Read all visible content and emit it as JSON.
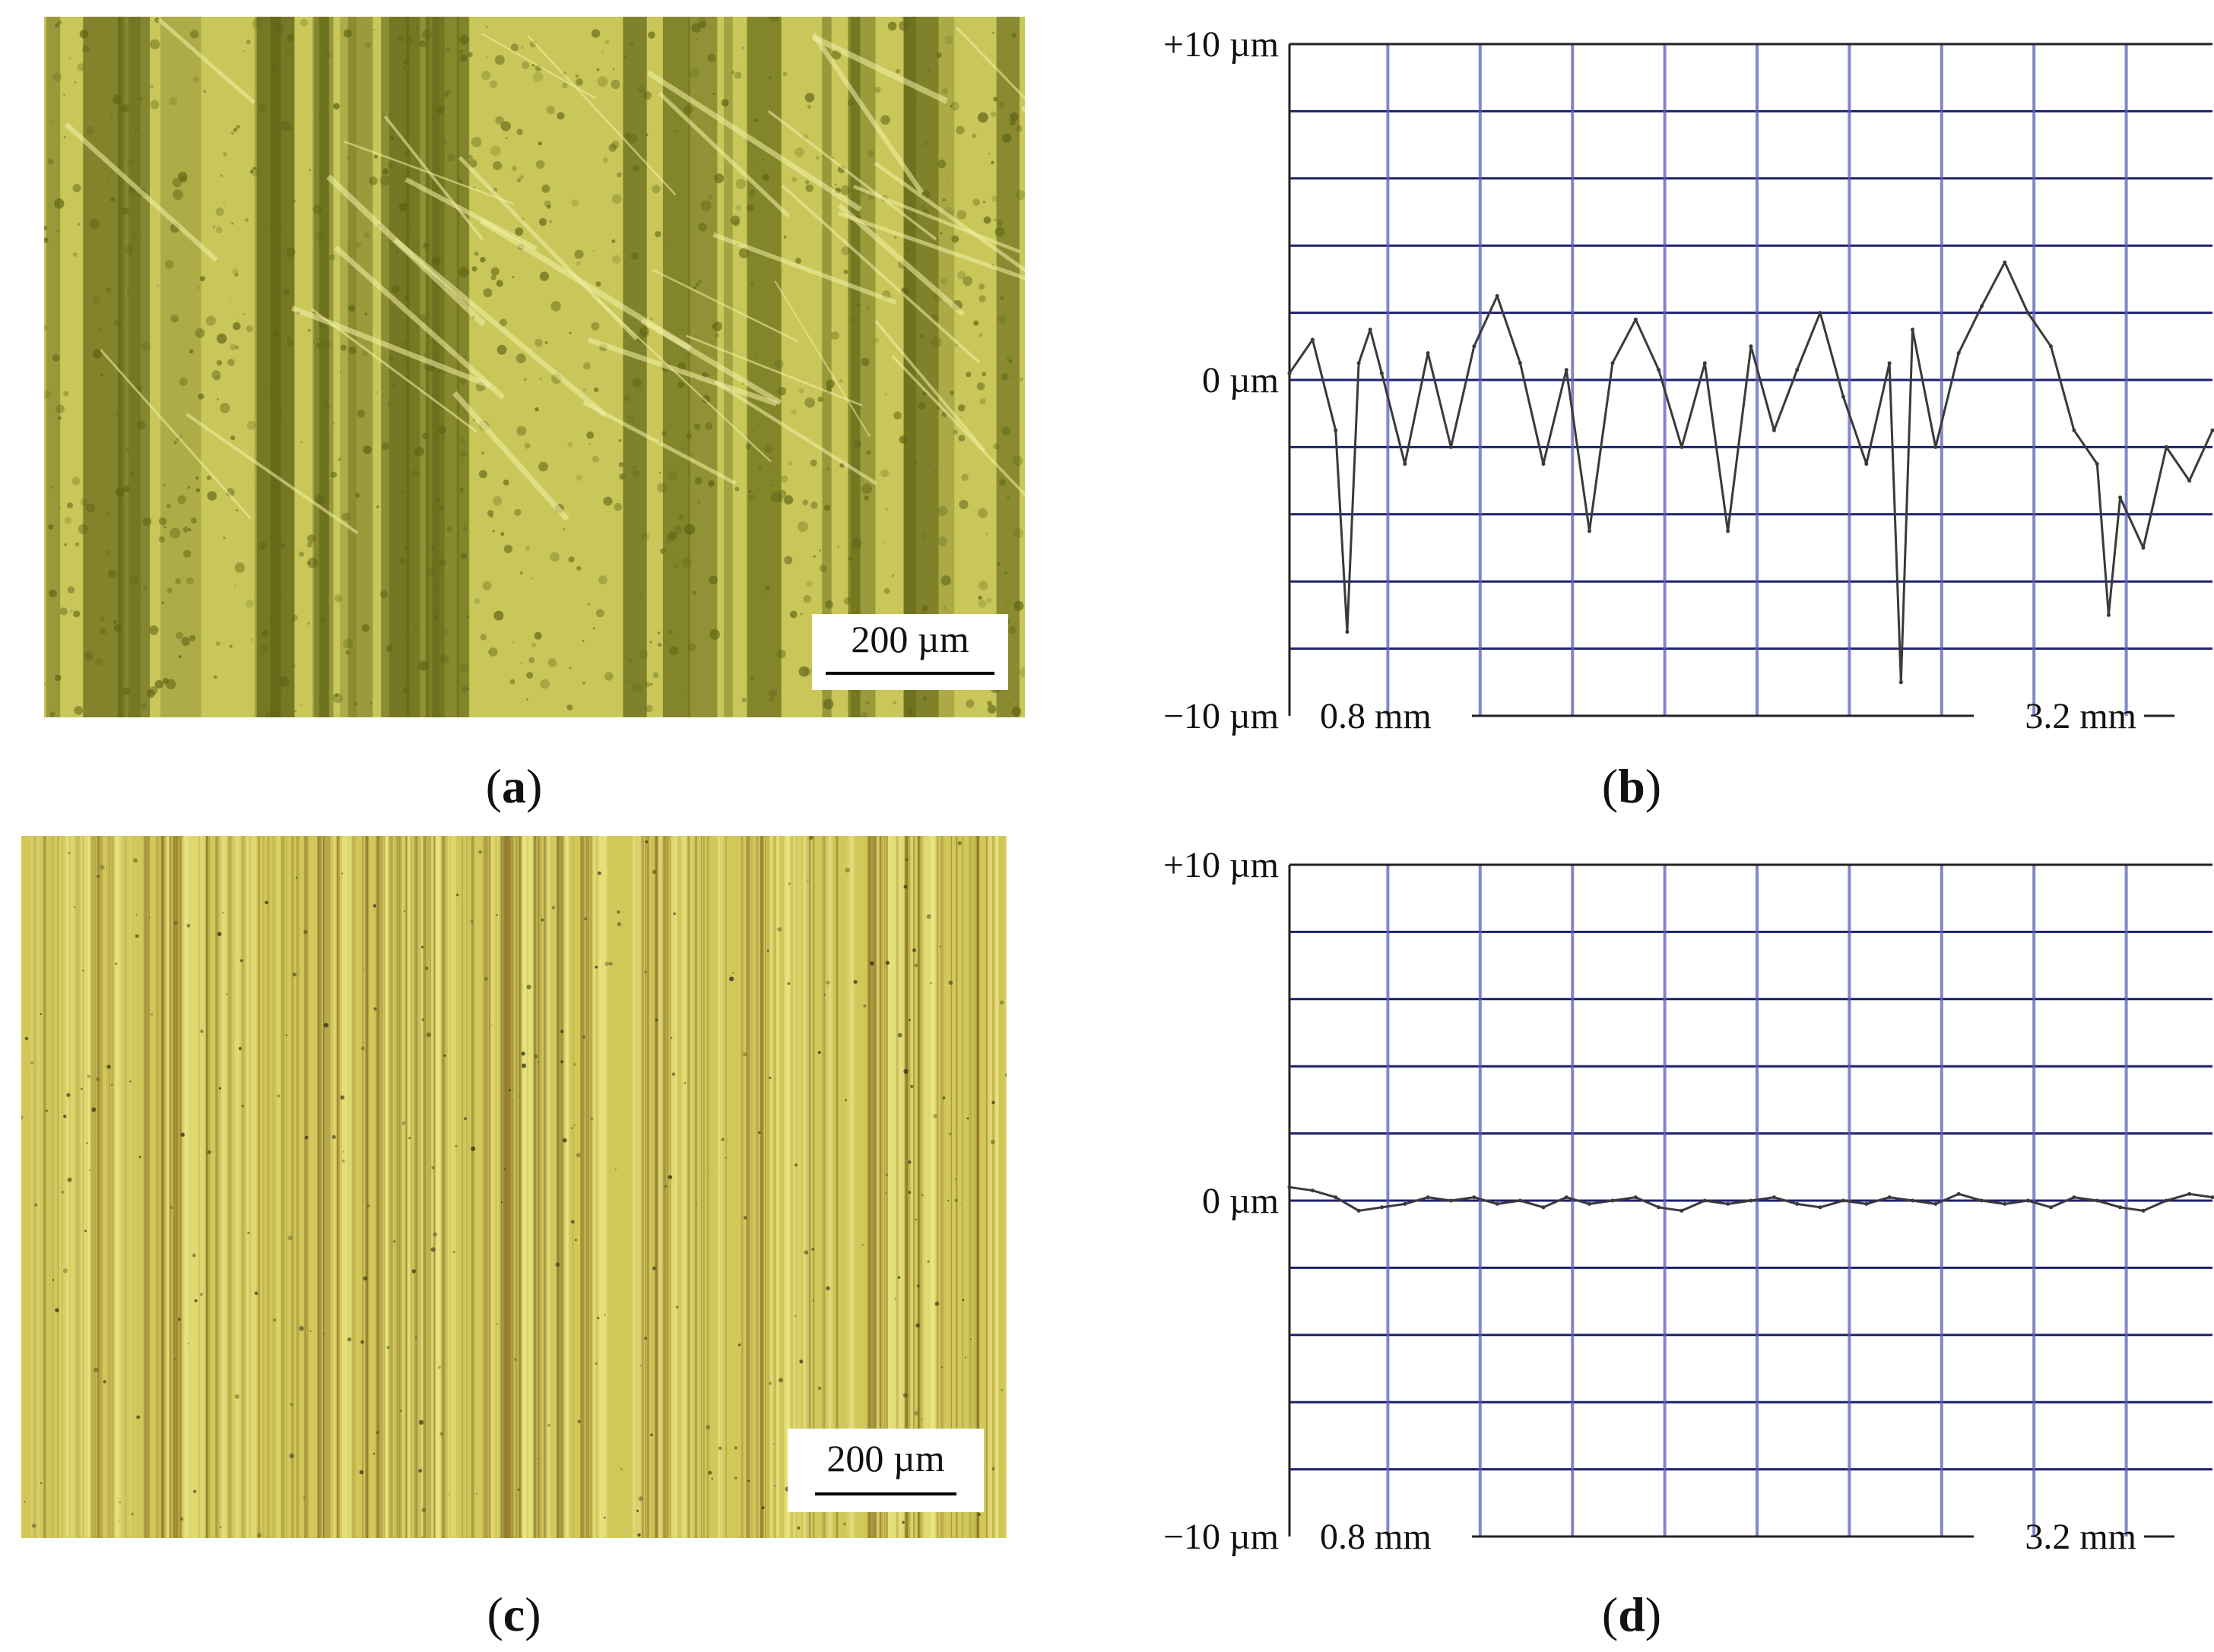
{
  "panels": [
    {
      "id": "a",
      "caption_letter": "a",
      "scale_label": "200 µm"
    },
    {
      "id": "b",
      "caption_letter": "b"
    },
    {
      "id": "c",
      "caption_letter": "c",
      "scale_label": "200 µm"
    },
    {
      "id": "d",
      "caption_letter": "d"
    }
  ],
  "colors": {
    "grid_vertical": "#5a5fb8",
    "grid_horizontal": "#1f1f6e",
    "profile": "#3a3a3a",
    "micro_a_base": "#c9c75a",
    "micro_a_dark": "#5e6214",
    "micro_c_base": "#d2c85a",
    "micro_c_dark": "#7a5e1e"
  },
  "chart_data": [
    {
      "panel": "b",
      "type": "line",
      "y_tick_labels": {
        "top": "+10 µm",
        "middle": "0 µm",
        "bottom": "−10 µm"
      },
      "x_tick_labels": {
        "left": "0.8 mm",
        "right": "3.2 mm"
      },
      "xlim": [
        0,
        4.0
      ],
      "ylim": [
        -10,
        10
      ],
      "grid": true,
      "series": [
        {
          "x": [
            0.0,
            0.1,
            0.2,
            0.25,
            0.3,
            0.35,
            0.4,
            0.5,
            0.6,
            0.7,
            0.8,
            0.9,
            1.0,
            1.1,
            1.2,
            1.3,
            1.4,
            1.5,
            1.6,
            1.7,
            1.8,
            1.9,
            2.0,
            2.1,
            2.2,
            2.3,
            2.4,
            2.5,
            2.6,
            2.65,
            2.7,
            2.8,
            2.9,
            3.0,
            3.1,
            3.2,
            3.3,
            3.4,
            3.5,
            3.55,
            3.6,
            3.7,
            3.8,
            3.9,
            4.0
          ],
          "y": [
            0.2,
            1.2,
            -1.5,
            -7.5,
            0.5,
            1.5,
            0.2,
            -2.5,
            0.8,
            -2.0,
            1.0,
            2.5,
            0.5,
            -2.5,
            0.3,
            -4.5,
            0.5,
            1.8,
            0.3,
            -2.0,
            0.5,
            -4.5,
            1.0,
            -1.5,
            0.3,
            2.0,
            -0.5,
            -2.5,
            0.5,
            -9.0,
            1.5,
            -2.0,
            0.8,
            2.2,
            3.5,
            2.0,
            1.0,
            -1.5,
            -2.5,
            -7.0,
            -3.5,
            -5.0,
            -2.0,
            -3.0,
            -1.5
          ]
        }
      ]
    },
    {
      "panel": "d",
      "type": "line",
      "y_tick_labels": {
        "top": "+10 µm",
        "middle": "0 µm",
        "bottom": "−10 µm"
      },
      "x_tick_labels": {
        "left": "0.8 mm",
        "right": "3.2 mm"
      },
      "xlim": [
        0,
        4.0
      ],
      "ylim": [
        -10,
        10
      ],
      "grid": true,
      "series": [
        {
          "x": [
            0.0,
            0.1,
            0.2,
            0.3,
            0.4,
            0.5,
            0.6,
            0.7,
            0.8,
            0.9,
            1.0,
            1.1,
            1.2,
            1.3,
            1.4,
            1.5,
            1.6,
            1.7,
            1.8,
            1.9,
            2.0,
            2.1,
            2.2,
            2.3,
            2.4,
            2.5,
            2.6,
            2.7,
            2.8,
            2.9,
            3.0,
            3.1,
            3.2,
            3.3,
            3.4,
            3.5,
            3.6,
            3.7,
            3.8,
            3.9,
            4.0
          ],
          "y": [
            0.4,
            0.3,
            0.1,
            -0.3,
            -0.2,
            -0.1,
            0.1,
            0.0,
            0.1,
            -0.1,
            0.0,
            -0.2,
            0.1,
            -0.1,
            0.0,
            0.1,
            -0.2,
            -0.3,
            0.0,
            -0.1,
            0.0,
            0.1,
            -0.1,
            -0.2,
            0.0,
            -0.1,
            0.1,
            0.0,
            -0.1,
            0.2,
            0.0,
            -0.1,
            0.0,
            -0.2,
            0.1,
            0.0,
            -0.2,
            -0.3,
            0.0,
            0.2,
            0.1
          ]
        }
      ]
    }
  ]
}
